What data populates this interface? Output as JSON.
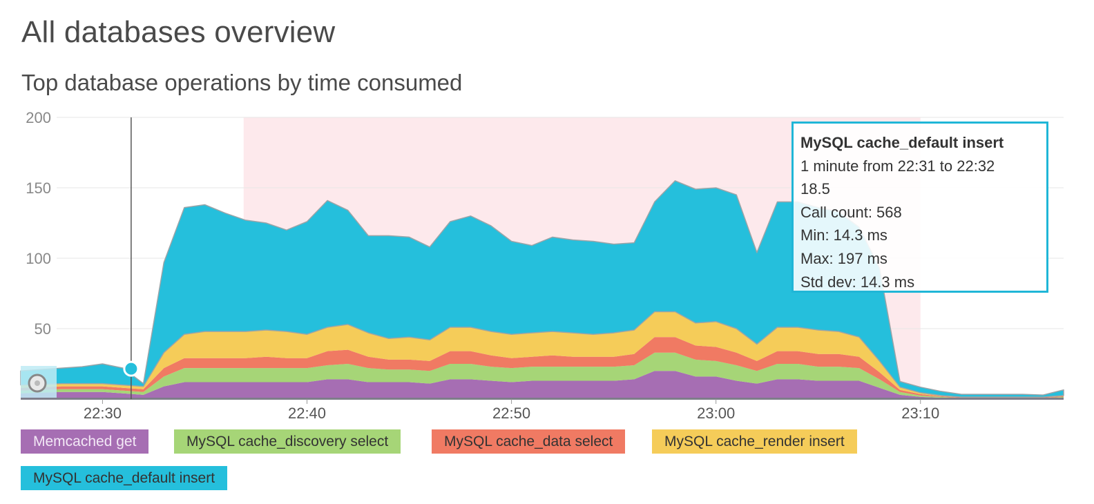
{
  "page": {
    "title": "All databases overview",
    "chart_title": "Top database operations by time consumed"
  },
  "tooltip": {
    "series": "MySQL cache_default insert",
    "range": "1 minute from 22:31 to 22:32",
    "value": "18.5",
    "call_count": "Call count: 568",
    "min": "Min: 14.3 ms",
    "max": "Max: 197 ms",
    "std_dev": "Std dev: 14.3 ms"
  },
  "colors": {
    "memcached_get": "#a66eb3",
    "cache_discovery": "#a6d577",
    "cache_data": "#f07a63",
    "cache_render": "#f5cc59",
    "cache_default": "#25bfdc",
    "highlight_band": "#fde9ec",
    "hover_line": "#555555"
  },
  "chart_data": {
    "type": "area",
    "stacked": true,
    "title": "Top database operations by time consumed",
    "xlabel": "",
    "ylabel": "",
    "ylim": [
      0,
      200
    ],
    "y_ticks": [
      50,
      100,
      150,
      200
    ],
    "x_tick_labels": [
      "22:30",
      "22:40",
      "22:50",
      "23:00",
      "23:10"
    ],
    "x_tick_minutes": [
      1350,
      1360,
      1370,
      1380,
      1390
    ],
    "grid": true,
    "legend_position": "bottom",
    "highlight_range_minutes": [
      1356.9,
      1390
    ],
    "hover_minute": 1351.4,
    "x_minutes": [
      1346,
      1348,
      1349,
      1350,
      1351,
      1352,
      1353,
      1354,
      1355,
      1356,
      1357,
      1358,
      1359,
      1360,
      1361,
      1362,
      1363,
      1364,
      1365,
      1366,
      1367,
      1368,
      1369,
      1370,
      1371,
      1372,
      1373,
      1374,
      1375,
      1376,
      1377,
      1378,
      1379,
      1380,
      1381,
      1382,
      1383,
      1384,
      1385,
      1386,
      1387,
      1388,
      1389,
      1390,
      1391,
      1392,
      1393,
      1394,
      1395,
      1396,
      1397
    ],
    "series": [
      {
        "name": "Memcached get",
        "values": [
          4,
          5,
          5,
          5,
          4,
          3,
          9,
          12,
          12,
          12,
          12,
          12,
          12,
          12,
          14,
          14,
          12,
          12,
          12,
          11,
          14,
          14,
          13,
          12,
          13,
          13,
          13,
          13,
          13,
          14,
          20,
          20,
          16,
          16,
          13,
          11,
          14,
          14,
          13,
          13,
          13,
          8,
          3,
          1.5,
          1,
          0.5,
          0.5,
          0.5,
          0.5,
          0.5,
          1
        ]
      },
      {
        "name": "MySQL cache_discovery select",
        "values": [
          2,
          2,
          2,
          2,
          2,
          2,
          7,
          10,
          10,
          10,
          10,
          10,
          10,
          10,
          10,
          11,
          10,
          9,
          9,
          9,
          11,
          11,
          10,
          10,
          10,
          10,
          10,
          10,
          10,
          10,
          13,
          13,
          12,
          11,
          11,
          9,
          11,
          11,
          10,
          10,
          9,
          6,
          2,
          1,
          0.5,
          0.3,
          0.3,
          0.3,
          0.3,
          0.3,
          0.5
        ]
      },
      {
        "name": "MySQL cache_data select",
        "values": [
          2,
          2,
          2,
          2,
          2,
          2,
          6,
          7,
          7,
          7,
          7,
          8,
          7,
          7,
          10,
          10,
          8,
          7,
          7,
          7,
          9,
          9,
          8,
          7,
          7,
          8,
          7,
          7,
          7,
          8,
          11,
          11,
          10,
          10,
          9,
          7,
          9,
          9,
          9,
          9,
          8,
          5,
          1.5,
          1,
          0.5,
          0.3,
          0.3,
          0.3,
          0.3,
          0.3,
          0.5
        ]
      },
      {
        "name": "MySQL cache_render insert",
        "values": [
          2,
          2,
          2,
          2,
          2,
          2,
          11,
          17,
          19,
          19,
          19,
          19,
          19,
          17,
          17,
          18,
          17,
          15,
          16,
          15,
          17,
          17,
          17,
          17,
          17,
          17,
          17,
          16,
          17,
          17,
          18,
          18,
          16,
          18,
          17,
          12,
          17,
          17,
          17,
          16,
          14,
          8,
          2,
          1,
          0.5,
          0.3,
          0.3,
          0.3,
          0.3,
          0.3,
          0.5
        ]
      },
      {
        "name": "MySQL cache_default insert",
        "values": [
          10,
          11,
          12,
          14,
          12,
          2,
          64,
          90,
          90,
          84,
          79,
          76,
          72,
          80,
          90,
          81,
          69,
          73,
          71,
          66,
          75,
          79,
          75,
          66,
          62,
          67,
          66,
          66,
          63,
          62,
          78,
          93,
          95,
          95,
          95,
          65,
          89,
          89,
          87,
          85,
          78,
          66,
          4,
          4,
          3,
          2,
          2,
          2,
          2,
          1.5,
          4
        ]
      }
    ]
  },
  "legend": [
    {
      "label": "Memcached get"
    },
    {
      "label": "MySQL cache_discovery select"
    },
    {
      "label": "MySQL cache_data select"
    },
    {
      "label": "MySQL cache_render insert"
    },
    {
      "label": "MySQL cache_default insert"
    }
  ]
}
